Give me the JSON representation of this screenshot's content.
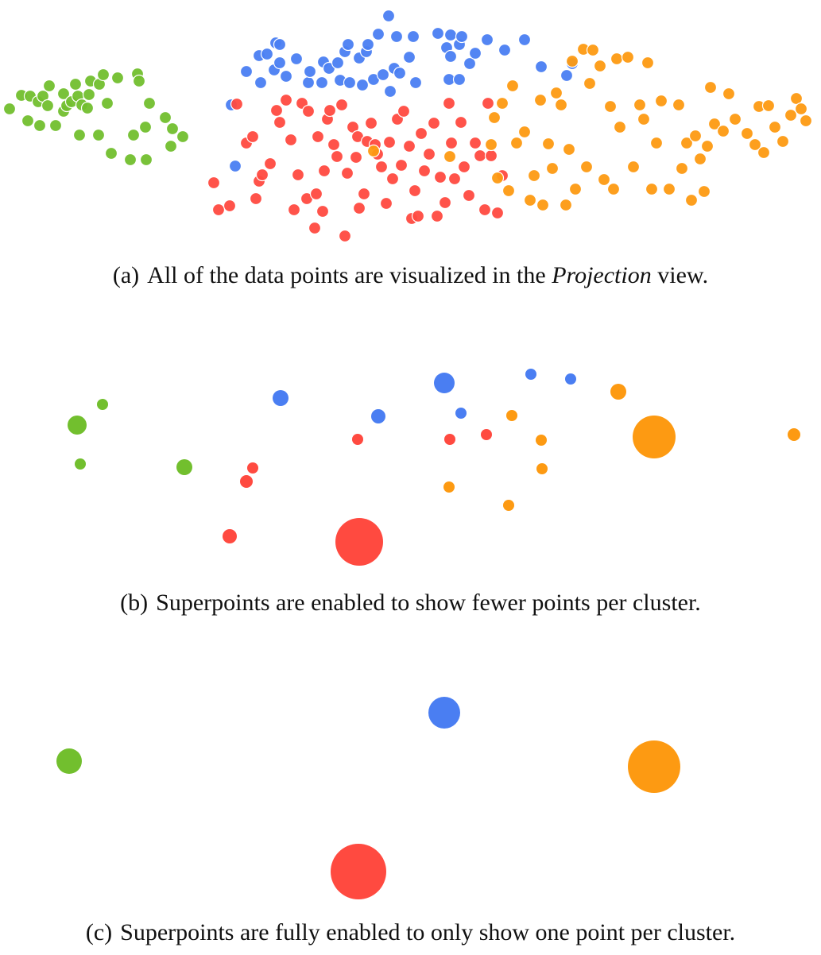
{
  "colors": {
    "green": "#72bf2e",
    "blue": "#4a7ef2",
    "red": "#ff4a40",
    "orange": "#fd9a12"
  },
  "captions": {
    "a": {
      "tag": "(a)",
      "before": "All of the data points are visualized in the ",
      "emph": "Projection",
      "after": " view."
    },
    "b": {
      "tag": "(b)",
      "text": "Superpoints are enabled to show fewer points per cluster."
    },
    "c": {
      "tag": "(c)",
      "text": "Superpoints are fully enabled to only show one point per cluster."
    }
  },
  "chart_data": [
    {
      "type": "scatter",
      "title": "",
      "xlabel": "",
      "ylabel": "",
      "grid": false,
      "legend": "none",
      "series": [
        {
          "color": "green",
          "points": [
            [
              12,
              137
            ],
            [
              27,
              120
            ],
            [
              35,
              152
            ],
            [
              38,
              121
            ],
            [
              48,
              128
            ],
            [
              50,
              158
            ],
            [
              54,
              121
            ],
            [
              60,
              133
            ],
            [
              62,
              108
            ],
            [
              70,
              158
            ],
            [
              80,
              118
            ],
            [
              80,
              140
            ],
            [
              84,
              133
            ],
            [
              90,
              128
            ],
            [
              95,
              106
            ],
            [
              98,
              121
            ],
            [
              100,
              170
            ],
            [
              103,
              132
            ],
            [
              110,
              136
            ],
            [
              112,
              119
            ],
            [
              114,
              102
            ],
            [
              124,
              170
            ],
            [
              125,
              106
            ],
            [
              130,
              94
            ],
            [
              135,
              130
            ],
            [
              140,
              193
            ],
            [
              148,
              98
            ],
            [
              164,
              201
            ],
            [
              168,
              170
            ],
            [
              173,
              93
            ],
            [
              175,
              102
            ],
            [
              183,
              160
            ],
            [
              184,
              201
            ],
            [
              188,
              130
            ],
            [
              208,
              148
            ],
            [
              215,
              184
            ],
            [
              217,
              162
            ],
            [
              230,
              172
            ]
          ]
        },
        {
          "color": "blue",
          "points": [
            [
              291,
              132
            ],
            [
              296,
              209
            ],
            [
              310,
              90
            ],
            [
              326,
              70
            ],
            [
              328,
              104
            ],
            [
              336,
              68
            ],
            [
              345,
              88
            ],
            [
              347,
              54
            ],
            [
              352,
              56
            ],
            [
              352,
              79
            ],
            [
              360,
              96
            ],
            [
              373,
              74
            ],
            [
              388,
              104
            ],
            [
              390,
              90
            ],
            [
              405,
              104
            ],
            [
              407,
              78
            ],
            [
              414,
              86
            ],
            [
              425,
              79
            ],
            [
              428,
              101
            ],
            [
              434,
              65
            ],
            [
              438,
              56
            ],
            [
              440,
              104
            ],
            [
              452,
              73
            ],
            [
              456,
              107
            ],
            [
              461,
              65
            ],
            [
              463,
              56
            ],
            [
              470,
              100
            ],
            [
              476,
              43
            ],
            [
              482,
              94
            ],
            [
              489,
              20
            ],
            [
              491,
              115
            ],
            [
              496,
              86
            ],
            [
              499,
              46
            ],
            [
              503,
              92
            ],
            [
              515,
              72
            ],
            [
              520,
              46
            ],
            [
              523,
              104
            ],
            [
              551,
              42
            ],
            [
              562,
              60
            ],
            [
              565,
              100
            ],
            [
              567,
              44
            ],
            [
              567,
              71
            ],
            [
              578,
              56
            ],
            [
              578,
              100
            ],
            [
              581,
              46
            ],
            [
              591,
              80
            ],
            [
              598,
              67
            ],
            [
              613,
              50
            ],
            [
              635,
              63
            ],
            [
              660,
              50
            ],
            [
              681,
              84
            ],
            [
              713,
              95
            ],
            [
              720,
              80
            ]
          ]
        },
        {
          "color": "red",
          "points": [
            [
              269,
              230
            ],
            [
              275,
              264
            ],
            [
              289,
              259
            ],
            [
              298,
              131
            ],
            [
              310,
              180
            ],
            [
              318,
              172
            ],
            [
              322,
              250
            ],
            [
              326,
              228
            ],
            [
              330,
              220
            ],
            [
              340,
              206
            ],
            [
              348,
              139
            ],
            [
              352,
              154
            ],
            [
              360,
              126
            ],
            [
              366,
              176
            ],
            [
              370,
              264
            ],
            [
              375,
              220
            ],
            [
              380,
              130
            ],
            [
              386,
              250
            ],
            [
              388,
              140
            ],
            [
              396,
              287
            ],
            [
              398,
              244
            ],
            [
              400,
              172
            ],
            [
              406,
              266
            ],
            [
              408,
              215
            ],
            [
              412,
              150
            ],
            [
              415,
              139
            ],
            [
              420,
              182
            ],
            [
              424,
              197
            ],
            [
              430,
              132
            ],
            [
              434,
              297
            ],
            [
              437,
              218
            ],
            [
              444,
              160
            ],
            [
              448,
              198
            ],
            [
              450,
              172
            ],
            [
              452,
              262
            ],
            [
              458,
              244
            ],
            [
              462,
              178
            ],
            [
              467,
              155
            ],
            [
              472,
              182
            ],
            [
              475,
              194
            ],
            [
              480,
              210
            ],
            [
              486,
              256
            ],
            [
              490,
              179
            ],
            [
              494,
              225
            ],
            [
              500,
              150
            ],
            [
              505,
              208
            ],
            [
              508,
              140
            ],
            [
              515,
              184
            ],
            [
              518,
              275
            ],
            [
              522,
              240
            ],
            [
              526,
              272
            ],
            [
              530,
              168
            ],
            [
              534,
              215
            ],
            [
              540,
              194
            ],
            [
              546,
              155
            ],
            [
              550,
              272
            ],
            [
              554,
              223
            ],
            [
              560,
              255
            ],
            [
              565,
              130
            ],
            [
              568,
              180
            ],
            [
              572,
              225
            ],
            [
              580,
              154
            ],
            [
              584,
              210
            ],
            [
              590,
              246
            ],
            [
              598,
              180
            ],
            [
              604,
              196
            ],
            [
              610,
              264
            ],
            [
              614,
              130
            ],
            [
              618,
              196
            ],
            [
              626,
              268
            ],
            [
              632,
              221
            ]
          ]
        },
        {
          "color": "orange",
          "points": [
            [
              470,
              190
            ],
            [
              566,
              197
            ],
            [
              618,
              182
            ],
            [
              622,
              148
            ],
            [
              626,
              224
            ],
            [
              632,
              130
            ],
            [
              640,
              240
            ],
            [
              645,
              108
            ],
            [
              650,
              180
            ],
            [
              660,
              166
            ],
            [
              667,
              252
            ],
            [
              672,
              221
            ],
            [
              680,
              126
            ],
            [
              683,
              258
            ],
            [
              690,
              181
            ],
            [
              695,
              212
            ],
            [
              700,
              117
            ],
            [
              706,
              132
            ],
            [
              712,
              258
            ],
            [
              716,
              188
            ],
            [
              720,
              77
            ],
            [
              724,
              238
            ],
            [
              734,
              62
            ],
            [
              738,
              210
            ],
            [
              742,
              105
            ],
            [
              746,
              63
            ],
            [
              755,
              83
            ],
            [
              760,
              226
            ],
            [
              768,
              134
            ],
            [
              772,
              238
            ],
            [
              776,
              74
            ],
            [
              780,
              160
            ],
            [
              790,
              72
            ],
            [
              797,
              210
            ],
            [
              805,
              132
            ],
            [
              810,
              150
            ],
            [
              815,
              79
            ],
            [
              820,
              238
            ],
            [
              826,
              180
            ],
            [
              832,
              127
            ],
            [
              842,
              238
            ],
            [
              854,
              132
            ],
            [
              858,
              212
            ],
            [
              864,
              180
            ],
            [
              870,
              252
            ],
            [
              875,
              171
            ],
            [
              881,
              200
            ],
            [
              886,
              241
            ],
            [
              890,
              184
            ],
            [
              894,
              110
            ],
            [
              899,
              156
            ],
            [
              910,
              165
            ],
            [
              917,
              118
            ],
            [
              925,
              150
            ],
            [
              940,
              168
            ],
            [
              950,
              182
            ],
            [
              955,
              134
            ],
            [
              961,
              192
            ],
            [
              967,
              133
            ],
            [
              975,
              160
            ],
            [
              985,
              178
            ],
            [
              995,
              145
            ],
            [
              1002,
              124
            ],
            [
              1008,
              137
            ],
            [
              1014,
              152
            ]
          ]
        }
      ]
    },
    {
      "type": "scatter",
      "title": "",
      "xlabel": "",
      "ylabel": "",
      "grid": false,
      "legend": "none",
      "series": [
        {
          "color": "green",
          "points": [
            [
              97,
              535,
              12
            ],
            [
              129,
              509,
              7
            ],
            [
              101,
              584,
              7
            ],
            [
              232,
              588,
              10
            ]
          ]
        },
        {
          "color": "blue",
          "points": [
            [
              353,
              501,
              10
            ],
            [
              559,
              482,
              13
            ],
            [
              476,
              524,
              9
            ],
            [
              580,
              520,
              7
            ],
            [
              668,
              471,
              7
            ],
            [
              718,
              477,
              7
            ]
          ]
        },
        {
          "color": "red",
          "points": [
            [
              318,
              589,
              7
            ],
            [
              310,
              606,
              8
            ],
            [
              289,
              675,
              9
            ],
            [
              450,
              553,
              7
            ],
            [
              566,
              553,
              7
            ],
            [
              612,
              547,
              7
            ],
            [
              452,
              682,
              30
            ]
          ]
        },
        {
          "color": "orange",
          "points": [
            [
              778,
              493,
              10
            ],
            [
              644,
              523,
              7
            ],
            [
              681,
              554,
              7
            ],
            [
              682,
              590,
              7
            ],
            [
              565,
              613,
              7
            ],
            [
              640,
              636,
              7
            ],
            [
              823,
              550,
              27
            ],
            [
              999,
              547,
              8
            ]
          ]
        }
      ]
    },
    {
      "type": "scatter",
      "title": "",
      "xlabel": "",
      "ylabel": "",
      "grid": false,
      "legend": "none",
      "series": [
        {
          "color": "green",
          "points": [
            [
              87,
              958,
              16
            ]
          ]
        },
        {
          "color": "blue",
          "points": [
            [
              559,
              897,
              20
            ]
          ]
        },
        {
          "color": "red",
          "points": [
            [
              451,
              1097,
              35
            ]
          ]
        },
        {
          "color": "orange",
          "points": [
            [
              823,
              965,
              33
            ]
          ]
        }
      ]
    }
  ]
}
